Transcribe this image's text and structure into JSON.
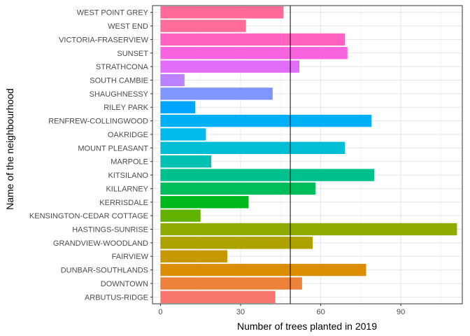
{
  "chart_data": {
    "type": "bar",
    "orientation": "horizontal",
    "title": "",
    "xlabel": "Number of trees planted in 2019",
    "ylabel": "Name of the neighbourhood",
    "xlim": [
      -3,
      113
    ],
    "xticks": [
      0,
      30,
      60,
      90
    ],
    "grid": true,
    "legend": "none",
    "reference_line": {
      "x": 48.6,
      "color": "#000000"
    },
    "categories": [
      "ARBUTUS-RIDGE",
      "DOWNTOWN",
      "DUNBAR-SOUTHLANDS",
      "FAIRVIEW",
      "GRANDVIEW-WOODLAND",
      "HASTINGS-SUNRISE",
      "KENSINGTON-CEDAR COTTAGE",
      "KERRISDALE",
      "KILLARNEY",
      "KITSILANO",
      "MARPOLE",
      "MOUNT PLEASANT",
      "OAKRIDGE",
      "RENFREW-COLLINGWOOD",
      "RILEY PARK",
      "SHAUGHNESSY",
      "SOUTH CAMBIE",
      "STRATHCONA",
      "SUNSET",
      "VICTORIA-FRASERVIEW",
      "WEST END",
      "WEST POINT GREY"
    ],
    "values": [
      43,
      53,
      77,
      25,
      57,
      111,
      15,
      33,
      58,
      80,
      19,
      69,
      17,
      79,
      13,
      42,
      9,
      52,
      70,
      69,
      32,
      46
    ],
    "colors": [
      "#F8766D",
      "#EC8239",
      "#DB8E00",
      "#C79800",
      "#AEA200",
      "#8FAA00",
      "#64B200",
      "#00B81B",
      "#00BD5C",
      "#00C08D",
      "#00C1B2",
      "#00BFD4",
      "#00BAEC",
      "#00B0F6",
      "#00A5FF",
      "#7F96FF",
      "#BC81FF",
      "#E26EF7",
      "#F863DF",
      "#FF62C0",
      "#FF6C9A",
      "#FF6A98"
    ]
  }
}
